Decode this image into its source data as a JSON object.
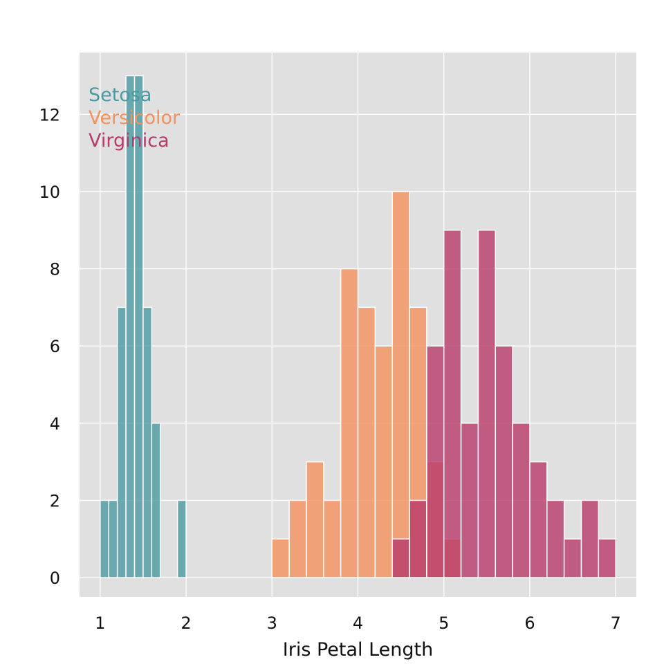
{
  "chart_data": {
    "type": "histogram",
    "title": "",
    "xlabel": "Iris Petal Length",
    "ylabel": "",
    "xlim": [
      0.76,
      7.24
    ],
    "ylim": [
      -0.5,
      13.6
    ],
    "x_ticks": [
      1,
      2,
      3,
      4,
      5,
      6,
      7
    ],
    "y_ticks": [
      0,
      2,
      4,
      6,
      8,
      10,
      12
    ],
    "grid": true,
    "legend_position": "top-left",
    "colors": {
      "panel_background": "#e0e0e0",
      "grid": "#ffffff",
      "bar_edge": "#ffffff"
    },
    "series": [
      {
        "name": "Setosa",
        "color": "#4a9aa1",
        "bin_start": 1.0,
        "bin_width": 0.1,
        "counts": [
          2,
          2,
          7,
          13,
          13,
          7,
          4,
          0,
          0,
          2
        ]
      },
      {
        "name": "Versicolor",
        "color": "#f4915e",
        "bin_start": 3.0,
        "bin_width": 0.2,
        "counts": [
          1,
          2,
          3,
          2,
          8,
          7,
          6,
          10,
          7,
          3,
          1
        ]
      },
      {
        "name": "Virginica",
        "color": "#b8396a",
        "bin_start": 4.4,
        "bin_width": 0.2,
        "counts": [
          1,
          2,
          6,
          9,
          4,
          9,
          6,
          4,
          3,
          2,
          1,
          2,
          1
        ]
      }
    ]
  }
}
